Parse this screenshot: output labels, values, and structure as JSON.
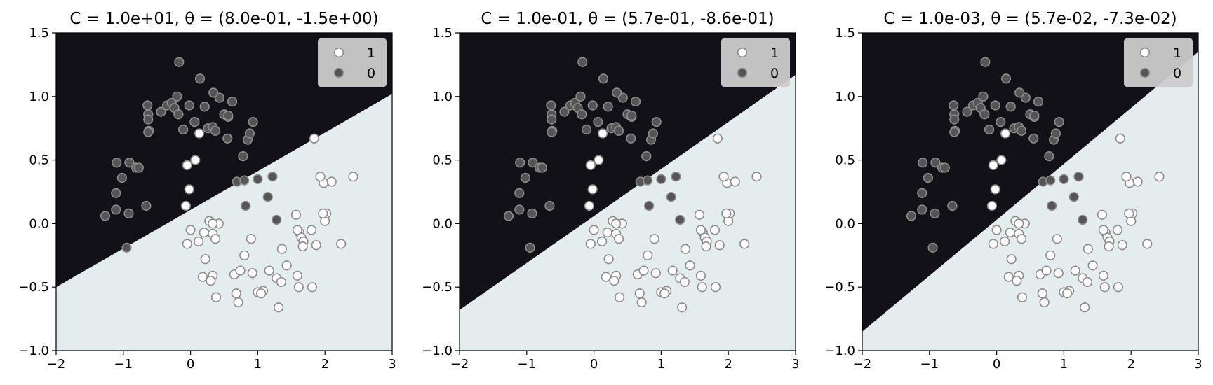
{
  "chart_data": [
    {
      "type": "scatter",
      "title": "C = 1.0e+01, θ = (8.0e-01, -1.5e+00)",
      "boundary": [
        [
          -2,
          -0.5
        ],
        [
          3,
          1.02
        ]
      ],
      "xlim": [
        -2,
        3
      ],
      "ylim": [
        -1,
        1.5
      ],
      "xticks": [
        -2,
        -1,
        0,
        1,
        2,
        3
      ],
      "xtick_labels": [
        "−2",
        "−1",
        "0",
        "1",
        "2",
        "3"
      ],
      "yticks": [
        -1.0,
        -0.5,
        0.0,
        0.5,
        1.0,
        1.5
      ],
      "ytick_labels": [
        "−1.0",
        "−0.5",
        "0.0",
        "0.5",
        "1.0",
        "1.5"
      ]
    },
    {
      "type": "scatter",
      "title": "C = 1.0e-01, θ = (5.7e-01, -8.6e-01)",
      "boundary": [
        [
          -2,
          -0.68
        ],
        [
          3,
          1.17
        ]
      ],
      "xlim": [
        -2,
        3
      ],
      "ylim": [
        -1,
        1.5
      ],
      "xticks": [
        -2,
        -1,
        0,
        1,
        2,
        3
      ],
      "xtick_labels": [
        "−2",
        "−1",
        "0",
        "1",
        "2",
        "3"
      ],
      "yticks": [
        -1.0,
        -0.5,
        0.0,
        0.5,
        1.0,
        1.5
      ],
      "ytick_labels": [
        "−1.0",
        "−0.5",
        "0.0",
        "0.5",
        "1.0",
        "1.5"
      ]
    },
    {
      "type": "scatter",
      "title": "C = 1.0e-03, θ = (5.7e-02, -7.3e-02)",
      "boundary": [
        [
          -2,
          -0.85
        ],
        [
          3,
          1.35
        ]
      ],
      "xlim": [
        -2,
        3
      ],
      "ylim": [
        -1,
        1.5
      ],
      "xticks": [
        -2,
        -1,
        0,
        1,
        2,
        3
      ],
      "xtick_labels": [
        "−2",
        "−1",
        "0",
        "1",
        "2",
        "3"
      ],
      "yticks": [
        -1.0,
        -0.5,
        0.0,
        0.5,
        1.0,
        1.5
      ],
      "ytick_labels": [
        "−1.0",
        "−0.5",
        "0.0",
        "0.5",
        "1.0",
        "1.5"
      ]
    }
  ],
  "series": [
    {
      "name": "1",
      "color": "#ffffff",
      "points": [
        [
          0.9,
          -0.12
        ],
        [
          0.07,
          0.5
        ],
        [
          -0.05,
          0.46
        ],
        [
          -0.07,
          0.14
        ],
        [
          -0.02,
          0.27
        ],
        [
          0.13,
          0.71
        ],
        [
          1.84,
          0.67
        ],
        [
          0.0,
          -0.05
        ],
        [
          0.2,
          -0.07
        ],
        [
          0.42,
          0.0
        ],
        [
          0.28,
          0.02
        ],
        [
          0.33,
          -0.08
        ],
        [
          0.12,
          -0.14
        ],
        [
          -0.05,
          -0.16
        ],
        [
          0.22,
          -0.28
        ],
        [
          0.37,
          -0.12
        ],
        [
          0.18,
          -0.42
        ],
        [
          0.33,
          -0.41
        ],
        [
          0.3,
          -0.45
        ],
        [
          0.38,
          -0.58
        ],
        [
          0.65,
          -0.4
        ],
        [
          0.74,
          -0.37
        ],
        [
          0.68,
          -0.55
        ],
        [
          0.71,
          -0.62
        ],
        [
          0.92,
          -0.39
        ],
        [
          1.0,
          -0.54
        ],
        [
          1.08,
          -0.53
        ],
        [
          1.05,
          -0.55
        ],
        [
          1.17,
          -0.37
        ],
        [
          1.28,
          -0.43
        ],
        [
          1.35,
          -0.46
        ],
        [
          1.31,
          -0.66
        ],
        [
          1.43,
          -0.33
        ],
        [
          1.36,
          -0.2
        ],
        [
          1.59,
          -0.41
        ],
        [
          1.61,
          -0.5
        ],
        [
          1.62,
          -0.07
        ],
        [
          1.65,
          -0.11
        ],
        [
          1.68,
          -0.14
        ],
        [
          1.59,
          -0.05
        ],
        [
          1.57,
          0.07
        ],
        [
          1.67,
          -0.18
        ],
        [
          1.8,
          -0.05
        ],
        [
          1.87,
          -0.17
        ],
        [
          1.81,
          -0.5
        ],
        [
          2.0,
          0.02
        ],
        [
          2.02,
          0.08
        ],
        [
          1.97,
          0.08
        ],
        [
          1.98,
          0.32
        ],
        [
          1.93,
          0.37
        ],
        [
          2.1,
          0.33
        ],
        [
          2.42,
          0.37
        ],
        [
          2.24,
          -0.16
        ],
        [
          0.8,
          -0.25
        ],
        [
          0.33,
          0.0
        ]
      ]
    },
    {
      "name": "0",
      "color": "#555555",
      "points": [
        [
          -0.95,
          -0.19
        ],
        [
          -1.27,
          0.06
        ],
        [
          -1.11,
          0.11
        ],
        [
          -0.92,
          0.08
        ],
        [
          -1.11,
          0.24
        ],
        [
          -0.66,
          0.14
        ],
        [
          -1.1,
          0.48
        ],
        [
          -0.91,
          0.48
        ],
        [
          -0.81,
          0.44
        ],
        [
          -0.77,
          0.44
        ],
        [
          -1.02,
          0.36
        ],
        [
          -0.64,
          0.93
        ],
        [
          -0.63,
          0.86
        ],
        [
          -0.63,
          0.82
        ],
        [
          -0.62,
          0.73
        ],
        [
          -0.63,
          0.72
        ],
        [
          -0.44,
          0.88
        ],
        [
          -0.35,
          0.93
        ],
        [
          -0.28,
          0.95
        ],
        [
          -0.24,
          0.91
        ],
        [
          -0.2,
          1.0
        ],
        [
          -0.18,
          0.86
        ],
        [
          -0.17,
          1.27
        ],
        [
          -0.11,
          0.74
        ],
        [
          -0.02,
          0.93
        ],
        [
          0.06,
          0.8
        ],
        [
          0.14,
          1.14
        ],
        [
          0.21,
          0.92
        ],
        [
          0.26,
          0.75
        ],
        [
          0.33,
          0.76
        ],
        [
          0.37,
          0.73
        ],
        [
          0.43,
          0.99
        ],
        [
          0.5,
          0.86
        ],
        [
          0.55,
          0.67
        ],
        [
          0.56,
          0.84
        ],
        [
          0.62,
          0.96
        ],
        [
          0.78,
          0.53
        ],
        [
          0.85,
          0.66
        ],
        [
          0.88,
          0.71
        ],
        [
          0.93,
          0.8
        ],
        [
          0.34,
          1.03
        ],
        [
          0.69,
          0.33
        ],
        [
          0.8,
          0.34
        ],
        [
          1.0,
          0.35
        ],
        [
          1.22,
          0.37
        ],
        [
          1.15,
          0.21
        ],
        [
          0.82,
          0.14
        ],
        [
          1.28,
          0.03
        ],
        [
          0.56,
          0.85
        ]
      ]
    }
  ],
  "legend": {
    "location": "top-right",
    "entries": [
      {
        "label": "1",
        "color": "#ffffff"
      },
      {
        "label": "0",
        "color": "#555555"
      }
    ]
  },
  "colors": {
    "region_above": "#111117",
    "region_below": "#e4eded",
    "marker_edge": "#8c8c8c",
    "legend_bg": "#cccccc"
  }
}
